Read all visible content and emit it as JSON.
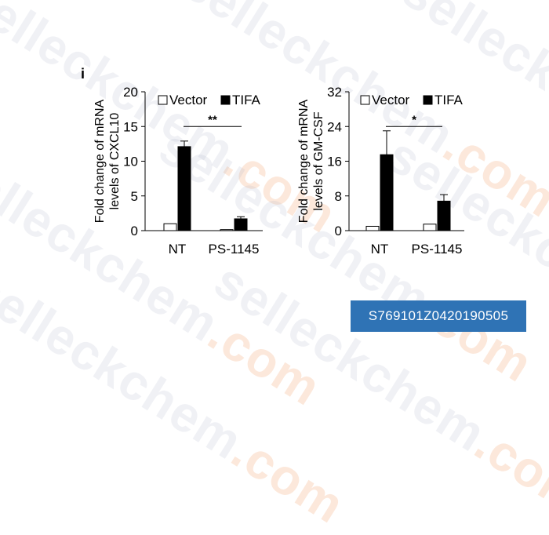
{
  "watermark": {
    "text": "selleckchem",
    "suffix": ".com",
    "color": "#aab4c8",
    "accent": "#f0965a"
  },
  "image_id": "S769101Z0420190505",
  "panel_label": "i",
  "chart_data": [
    {
      "type": "bar",
      "ylabel": "Fold change of mRNA levels of CXCL10",
      "ylabel_lines": [
        "Fold change of mRNA",
        "levels of CXCL10"
      ],
      "ylim": [
        0,
        20
      ],
      "yticks": [
        "0",
        "5",
        "10",
        "15",
        "20"
      ],
      "ytick_values": [
        0,
        5,
        10,
        15,
        20
      ],
      "categories": [
        "NT",
        "PS-1145"
      ],
      "legend": {
        "placement": "top",
        "entries": [
          "Vector",
          "TIFA"
        ]
      },
      "series": [
        {
          "name": "Vector",
          "fill": "#ffffff",
          "values": [
            1.0,
            0.15
          ],
          "errors": [
            0,
            0
          ]
        },
        {
          "name": "TIFA",
          "fill": "#000000",
          "values": [
            12.1,
            1.7
          ],
          "errors": [
            0.8,
            0.3
          ]
        }
      ],
      "significance": {
        "label": "**",
        "from_category": 0,
        "to_category": 1,
        "y": 15
      }
    },
    {
      "type": "bar",
      "ylabel": "Fold change of mRNA levels of GM-CSF",
      "ylabel_lines": [
        "Fold change of mRNA",
        "levels of GM-CSF"
      ],
      "ylim": [
        0,
        32
      ],
      "yticks": [
        "0",
        "8",
        "16",
        "24",
        "32"
      ],
      "ytick_values": [
        0,
        8,
        16,
        24,
        32
      ],
      "categories": [
        "NT",
        "PS-1145"
      ],
      "legend": {
        "placement": "top",
        "entries": [
          "Vector",
          "TIFA"
        ]
      },
      "series": [
        {
          "name": "Vector",
          "fill": "#ffffff",
          "values": [
            1.0,
            1.5
          ],
          "errors": [
            0,
            0
          ]
        },
        {
          "name": "TIFA",
          "fill": "#000000",
          "values": [
            17.5,
            6.8
          ],
          "errors": [
            5.5,
            1.5
          ]
        }
      ],
      "significance": {
        "label": "*",
        "from_category": 0,
        "to_category": 1,
        "y": 24
      }
    }
  ]
}
